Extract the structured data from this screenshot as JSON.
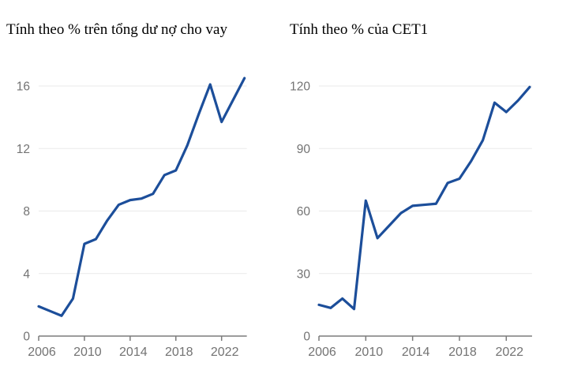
{
  "chart_data": [
    {
      "type": "line",
      "title": "Tính theo % trên tổng dư nợ cho vay",
      "x": [
        2006,
        2007,
        2008,
        2009,
        2010,
        2011,
        2012,
        2013,
        2014,
        2015,
        2016,
        2017,
        2018,
        2019,
        2020,
        2021,
        2022,
        2023,
        2024
      ],
      "values": [
        1.9,
        1.6,
        1.3,
        2.4,
        5.9,
        6.2,
        7.4,
        8.4,
        8.7,
        8.8,
        9.1,
        10.3,
        10.6,
        12.2,
        14.2,
        16.1,
        13.7,
        15.1,
        16.5
      ],
      "xticks": [
        2006,
        2010,
        2014,
        2018,
        2022
      ],
      "yticks": [
        0,
        4,
        8,
        12,
        16
      ],
      "ylim": [
        0,
        16
      ],
      "xlabel": "",
      "ylabel": "",
      "grid": true,
      "legend": null
    },
    {
      "type": "line",
      "title": "Tính theo % của CET1",
      "x": [
        2006,
        2007,
        2008,
        2009,
        2010,
        2011,
        2012,
        2013,
        2014,
        2015,
        2016,
        2017,
        2018,
        2019,
        2020,
        2021,
        2022,
        2023,
        2024
      ],
      "values": [
        15,
        13.5,
        18,
        13,
        65,
        47,
        53,
        59,
        62.5,
        63,
        63.5,
        73.5,
        75.5,
        84,
        94,
        112,
        107.5,
        113,
        119.5
      ],
      "xticks": [
        2006,
        2010,
        2014,
        2018,
        2022
      ],
      "yticks": [
        0,
        30,
        60,
        90,
        120
      ],
      "ylim": [
        0,
        120
      ],
      "xlabel": "",
      "ylabel": "",
      "grid": true,
      "legend": null
    }
  ],
  "styles": {
    "line_color": "#1c4e9a",
    "grid_color": "#eaeaea",
    "axis_color": "#7b7b7b",
    "tick_label_color": "#737373",
    "title_color": "#000000"
  }
}
